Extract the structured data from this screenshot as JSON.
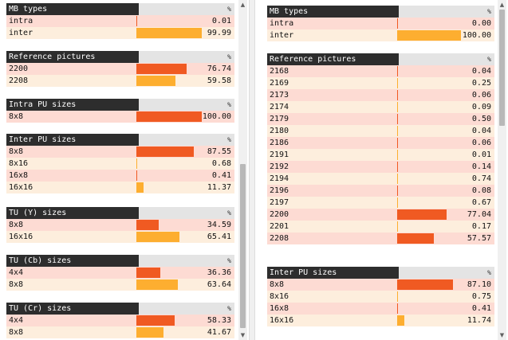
{
  "percent_symbol": "%",
  "colors": {
    "header_bg": "#2d2d2d",
    "pct_header_bg": "#e4e4e4",
    "row_odd": "#fddbd3",
    "row_even": "#fdeedd",
    "bar_red": "#f05a22",
    "bar_orange": "#fdae30"
  },
  "left_panel": {
    "sections": [
      {
        "title": "MB types",
        "rows": [
          {
            "label": "intra",
            "value": "0.01",
            "pct": 0.01,
            "color": "#f05a22"
          },
          {
            "label": "inter",
            "value": "99.99",
            "pct": 99.99,
            "color": "#fdae30"
          }
        ]
      },
      {
        "title": "Reference pictures",
        "rows": [
          {
            "label": "2200",
            "value": "76.74",
            "pct": 76.74,
            "color": "#f05a22"
          },
          {
            "label": "2208",
            "value": "59.58",
            "pct": 59.58,
            "color": "#fdae30"
          }
        ]
      },
      {
        "title": "Intra PU sizes",
        "rows": [
          {
            "label": "8x8",
            "value": "100.00",
            "pct": 100.0,
            "color": "#f05a22"
          }
        ]
      },
      {
        "title": "Inter PU sizes",
        "rows": [
          {
            "label": "8x8",
            "value": "87.55",
            "pct": 87.55,
            "color": "#f05a22"
          },
          {
            "label": "8x16",
            "value": "0.68",
            "pct": 0.68,
            "color": "#fdae30"
          },
          {
            "label": "16x8",
            "value": "0.41",
            "pct": 0.41,
            "color": "#f05a22"
          },
          {
            "label": "16x16",
            "value": "11.37",
            "pct": 11.37,
            "color": "#fdae30"
          }
        ]
      },
      {
        "title": "TU (Y) sizes",
        "rows": [
          {
            "label": "8x8",
            "value": "34.59",
            "pct": 34.59,
            "color": "#f05a22"
          },
          {
            "label": "16x16",
            "value": "65.41",
            "pct": 65.41,
            "color": "#fdae30"
          }
        ]
      },
      {
        "title": "TU (Cb) sizes",
        "rows": [
          {
            "label": "4x4",
            "value": "36.36",
            "pct": 36.36,
            "color": "#f05a22"
          },
          {
            "label": "8x8",
            "value": "63.64",
            "pct": 63.64,
            "color": "#fdae30"
          }
        ]
      },
      {
        "title": "TU (Cr) sizes",
        "rows": [
          {
            "label": "4x4",
            "value": "58.33",
            "pct": 58.33,
            "color": "#f05a22"
          },
          {
            "label": "8x8",
            "value": "41.67",
            "pct": 41.67,
            "color": "#fdae30"
          }
        ]
      }
    ]
  },
  "right_panel": {
    "sections": [
      {
        "title": "MB types",
        "rows": [
          {
            "label": "intra",
            "value": "0.00",
            "pct": 0.0,
            "color": "#f05a22"
          },
          {
            "label": "inter",
            "value": "100.00",
            "pct": 100.0,
            "color": "#fdae30"
          }
        ]
      },
      {
        "title": "Reference pictures",
        "rows": [
          {
            "label": "2168",
            "value": "0.04",
            "pct": 0.04,
            "color": "#f05a22"
          },
          {
            "label": "2169",
            "value": "0.25",
            "pct": 0.25,
            "color": "#fdae30"
          },
          {
            "label": "2173",
            "value": "0.06",
            "pct": 0.06,
            "color": "#f05a22"
          },
          {
            "label": "2174",
            "value": "0.09",
            "pct": 0.09,
            "color": "#fdae30"
          },
          {
            "label": "2179",
            "value": "0.50",
            "pct": 0.5,
            "color": "#f05a22"
          },
          {
            "label": "2180",
            "value": "0.04",
            "pct": 0.04,
            "color": "#fdae30"
          },
          {
            "label": "2186",
            "value": "0.06",
            "pct": 0.06,
            "color": "#f05a22"
          },
          {
            "label": "2191",
            "value": "0.01",
            "pct": 0.01,
            "color": "#fdae30"
          },
          {
            "label": "2192",
            "value": "0.14",
            "pct": 0.14,
            "color": "#f05a22"
          },
          {
            "label": "2194",
            "value": "0.74",
            "pct": 0.74,
            "color": "#fdae30"
          },
          {
            "label": "2196",
            "value": "0.08",
            "pct": 0.08,
            "color": "#f05a22"
          },
          {
            "label": "2197",
            "value": "0.67",
            "pct": 0.67,
            "color": "#fdae30"
          },
          {
            "label": "2200",
            "value": "77.04",
            "pct": 77.04,
            "color": "#f05a22"
          },
          {
            "label": "2201",
            "value": "0.17",
            "pct": 0.17,
            "color": "#fdae30"
          },
          {
            "label": "2208",
            "value": "57.57",
            "pct": 57.57,
            "color": "#f05a22"
          }
        ]
      },
      {
        "title": "Inter PU sizes",
        "rows": [
          {
            "label": "8x8",
            "value": "87.10",
            "pct": 87.1,
            "color": "#f05a22"
          },
          {
            "label": "8x16",
            "value": "0.75",
            "pct": 0.75,
            "color": "#fdae30"
          },
          {
            "label": "16x8",
            "value": "0.41",
            "pct": 0.41,
            "color": "#f05a22"
          },
          {
            "label": "16x16",
            "value": "11.74",
            "pct": 11.74,
            "color": "#fdae30"
          }
        ]
      }
    ]
  }
}
